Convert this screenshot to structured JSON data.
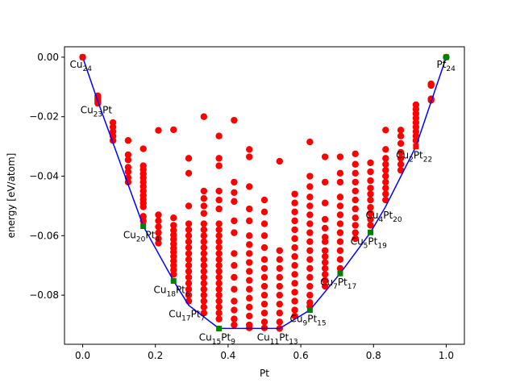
{
  "chart_data": {
    "type": "scatter",
    "title": "",
    "xlabel": "Pt",
    "ylabel": "energy [eV/atom]",
    "xlim": [
      -0.05,
      1.05
    ],
    "ylim": [
      -0.0965,
      0.0035
    ],
    "xticks": [
      "0.0",
      "0.2",
      "0.4",
      "0.6",
      "0.8",
      "1.0"
    ],
    "xtick_values": [
      0.0,
      0.2,
      0.4,
      0.6,
      0.8,
      1.0
    ],
    "yticks": [
      "0.00",
      "−0.02",
      "−0.04",
      "−0.06",
      "−0.08"
    ],
    "ytick_values": [
      0.0,
      -0.02,
      -0.04,
      -0.06,
      -0.08
    ],
    "colors": {
      "hull": "#0000ff",
      "points": "#ff0000",
      "hull_points": "#008000"
    },
    "hull_line": {
      "name": "convex hull",
      "x": [
        0.0,
        0.04167,
        0.16667,
        0.25,
        0.29167,
        0.375,
        0.54167,
        0.625,
        0.70833,
        0.79167,
        0.83333,
        0.91667,
        1.0
      ],
      "y": [
        0.0,
        -0.0148,
        -0.0568,
        -0.0752,
        -0.0834,
        -0.0912,
        -0.0912,
        -0.085,
        -0.0727,
        -0.0589,
        -0.0502,
        -0.03,
        0.0
      ]
    },
    "hull_points": {
      "name": "ground states",
      "x": [
        0.16667,
        0.25,
        0.375,
        0.625,
        0.70833,
        0.79167,
        1.0
      ],
      "y": [
        -0.0568,
        -0.0752,
        -0.0912,
        -0.085,
        -0.0727,
        -0.0589,
        0.0
      ]
    },
    "structures": [
      {
        "x": 0.0,
        "y": [
          0.0
        ]
      },
      {
        "x": 0.04167,
        "y": [
          -0.013,
          -0.0137,
          -0.0143,
          -0.0149,
          -0.0155
        ]
      },
      {
        "x": 0.08333,
        "y": [
          -0.022,
          -0.0235,
          -0.025,
          -0.0265,
          -0.028
        ]
      },
      {
        "x": 0.125,
        "y": [
          -0.028,
          -0.0328,
          -0.0345,
          -0.037,
          -0.0385,
          -0.0405,
          -0.042
        ]
      },
      {
        "x": 0.16667,
        "y": [
          -0.0308,
          -0.0365,
          -0.0378,
          -0.0392,
          -0.0405,
          -0.042,
          -0.0435,
          -0.045,
          -0.0465,
          -0.0478,
          -0.049,
          -0.0503,
          -0.0535,
          -0.055
        ]
      },
      {
        "x": 0.20833,
        "y": [
          -0.0246,
          -0.053,
          -0.055,
          -0.057,
          -0.059,
          -0.061,
          -0.0625
        ]
      },
      {
        "x": 0.25,
        "y": [
          -0.0244,
          -0.054,
          -0.0565,
          -0.0582,
          -0.0598,
          -0.0612,
          -0.0628,
          -0.0642,
          -0.0655,
          -0.067,
          -0.0685,
          -0.07,
          -0.0715,
          -0.073
        ]
      },
      {
        "x": 0.29167,
        "y": [
          -0.034,
          -0.039,
          -0.05,
          -0.056,
          -0.058,
          -0.06,
          -0.062,
          -0.064,
          -0.066,
          -0.068,
          -0.07,
          -0.072,
          -0.074,
          -0.076,
          -0.078,
          -0.08,
          -0.082
        ]
      },
      {
        "x": 0.33333,
        "y": [
          -0.02,
          -0.045,
          -0.0475,
          -0.05,
          -0.0525,
          -0.056,
          -0.058,
          -0.06,
          -0.062,
          -0.064,
          -0.066,
          -0.068,
          -0.07,
          -0.072,
          -0.074,
          -0.076,
          -0.078,
          -0.08,
          -0.082,
          -0.084,
          -0.086
        ]
      },
      {
        "x": 0.375,
        "y": [
          -0.0265,
          -0.034,
          -0.0365,
          -0.045,
          -0.048,
          -0.051,
          -0.056,
          -0.058,
          -0.06,
          -0.062,
          -0.064,
          -0.066,
          -0.068,
          -0.07,
          -0.072,
          -0.074,
          -0.076,
          -0.078,
          -0.08,
          -0.082,
          -0.084,
          -0.086,
          -0.088
        ]
      },
      {
        "x": 0.41667,
        "y": [
          -0.0212,
          -0.042,
          -0.0455,
          -0.0485,
          -0.055,
          -0.059,
          -0.066,
          -0.07,
          -0.074,
          -0.078,
          -0.082,
          -0.085,
          -0.088,
          -0.09
        ]
      },
      {
        "x": 0.45833,
        "y": [
          -0.031,
          -0.0335,
          -0.0435,
          -0.051,
          -0.055,
          -0.06,
          -0.063,
          -0.066,
          -0.069,
          -0.072,
          -0.075,
          -0.078,
          -0.081,
          -0.084,
          -0.087,
          -0.09,
          -0.091
        ]
      },
      {
        "x": 0.5,
        "y": [
          -0.048,
          -0.052,
          -0.056,
          -0.06,
          -0.064,
          -0.068,
          -0.071,
          -0.074,
          -0.077,
          -0.08,
          -0.083,
          -0.086,
          -0.089,
          -0.091
        ]
      },
      {
        "x": 0.54167,
        "y": [
          -0.035,
          -0.065,
          -0.068,
          -0.071,
          -0.074,
          -0.077,
          -0.08,
          -0.083,
          -0.086,
          -0.089,
          -0.0912
        ]
      },
      {
        "x": 0.58333,
        "y": [
          -0.046,
          -0.049,
          -0.052,
          -0.055,
          -0.058,
          -0.061,
          -0.064,
          -0.067,
          -0.07,
          -0.073,
          -0.076,
          -0.079,
          -0.082,
          -0.085,
          -0.087
        ]
      },
      {
        "x": 0.625,
        "y": [
          -0.0285,
          -0.04,
          -0.0435,
          -0.047,
          -0.05,
          -0.053,
          -0.056,
          -0.059,
          -0.062,
          -0.065,
          -0.068,
          -0.071,
          -0.074,
          -0.077,
          -0.08,
          -0.0825,
          -0.0838
        ]
      },
      {
        "x": 0.66667,
        "y": [
          -0.0335,
          -0.042,
          -0.049,
          -0.0545,
          -0.0575,
          -0.0605,
          -0.062,
          -0.065,
          -0.067,
          -0.069,
          -0.071,
          -0.073,
          -0.075,
          -0.077
        ]
      },
      {
        "x": 0.70833,
        "y": [
          -0.0335,
          -0.039,
          -0.042,
          -0.047,
          -0.05,
          -0.053,
          -0.056,
          -0.059,
          -0.062,
          -0.065,
          -0.068,
          -0.071
        ]
      },
      {
        "x": 0.75,
        "y": [
          -0.0325,
          -0.036,
          -0.039,
          -0.042,
          -0.045,
          -0.048,
          -0.051,
          -0.054,
          -0.0565,
          -0.059,
          -0.061
        ]
      },
      {
        "x": 0.79167,
        "y": [
          -0.0355,
          -0.0385,
          -0.0415,
          -0.044,
          -0.046,
          -0.048,
          -0.0505,
          -0.0525,
          -0.0545,
          -0.0565
        ]
      },
      {
        "x": 0.83333,
        "y": [
          -0.0245,
          -0.031,
          -0.034,
          -0.036,
          -0.038,
          -0.04,
          -0.042,
          -0.044,
          -0.046,
          -0.048
        ]
      },
      {
        "x": 0.875,
        "y": [
          -0.0245,
          -0.0265,
          -0.029,
          -0.032,
          -0.034,
          -0.036,
          -0.038
        ]
      },
      {
        "x": 0.91667,
        "y": [
          -0.016,
          -0.0175,
          -0.019,
          -0.0205,
          -0.022,
          -0.0235,
          -0.025,
          -0.0265,
          -0.028
        ]
      },
      {
        "x": 0.95833,
        "y": [
          -0.009,
          -0.0095,
          -0.014,
          -0.0145
        ]
      },
      {
        "x": 1.0,
        "y": [
          0.0
        ]
      }
    ],
    "annotations": [
      {
        "x": 0.0,
        "y": 0.0,
        "parts": [
          [
            "Cu",
            ""
          ],
          [
            "24",
            "sub"
          ]
        ],
        "anchor": "ul"
      },
      {
        "x": 0.04167,
        "y": -0.0148,
        "parts": [
          [
            "Cu",
            ""
          ],
          [
            "23",
            "sub"
          ],
          [
            "Pt",
            ""
          ]
        ],
        "anchor": "bl"
      },
      {
        "x": 0.16667,
        "y": -0.0568,
        "parts": [
          [
            "Cu",
            ""
          ],
          [
            "20",
            "sub"
          ],
          [
            "Pt",
            ""
          ],
          [
            "4",
            "sub"
          ]
        ],
        "anchor": "bl"
      },
      {
        "x": 0.25,
        "y": -0.0752,
        "parts": [
          [
            "Cu",
            ""
          ],
          [
            "18",
            "sub"
          ],
          [
            "Pt",
            ""
          ],
          [
            "6",
            "sub"
          ]
        ],
        "anchor": "bl"
      },
      {
        "x": 0.29167,
        "y": -0.0834,
        "parts": [
          [
            "Cu",
            ""
          ],
          [
            "17",
            "sub"
          ],
          [
            "Pt",
            ""
          ],
          [
            "7",
            "sub"
          ]
        ],
        "anchor": "bl"
      },
      {
        "x": 0.375,
        "y": -0.0912,
        "parts": [
          [
            "Cu",
            ""
          ],
          [
            "15",
            "sub"
          ],
          [
            "Pt",
            ""
          ],
          [
            "9",
            "sub"
          ]
        ],
        "anchor": "bl"
      },
      {
        "x": 0.54167,
        "y": -0.0912,
        "parts": [
          [
            "Cu",
            ""
          ],
          [
            "11",
            "sub"
          ],
          [
            "Pt",
            ""
          ],
          [
            "13",
            "sub"
          ]
        ],
        "anchor": "bl"
      },
      {
        "x": 0.625,
        "y": -0.085,
        "parts": [
          [
            "Cu",
            ""
          ],
          [
            "9",
            "sub"
          ],
          [
            "Pt",
            ""
          ],
          [
            "15",
            "sub"
          ]
        ],
        "anchor": "bl"
      },
      {
        "x": 0.70833,
        "y": -0.0727,
        "parts": [
          [
            "Cu",
            ""
          ],
          [
            "7",
            "sub"
          ],
          [
            "Pt",
            ""
          ],
          [
            "17",
            "sub"
          ]
        ],
        "anchor": "bl"
      },
      {
        "x": 0.79167,
        "y": -0.0589,
        "parts": [
          [
            "Cu",
            ""
          ],
          [
            "5",
            "sub"
          ],
          [
            "Pt",
            ""
          ],
          [
            "19",
            "sub"
          ]
        ],
        "anchor": "bl"
      },
      {
        "x": 0.83333,
        "y": -0.0502,
        "parts": [
          [
            "Cu",
            ""
          ],
          [
            "4",
            "sub"
          ],
          [
            "Pt",
            ""
          ],
          [
            "20",
            "sub"
          ]
        ],
        "anchor": "bl"
      },
      {
        "x": 0.91667,
        "y": -0.03,
        "parts": [
          [
            "Cu",
            ""
          ],
          [
            "2",
            "sub"
          ],
          [
            "Pt",
            ""
          ],
          [
            "22",
            "sub"
          ]
        ],
        "anchor": "bl"
      },
      {
        "x": 1.0,
        "y": 0.0,
        "parts": [
          [
            "Pt",
            ""
          ],
          [
            "24",
            "sub"
          ]
        ],
        "anchor": "ur"
      }
    ]
  }
}
